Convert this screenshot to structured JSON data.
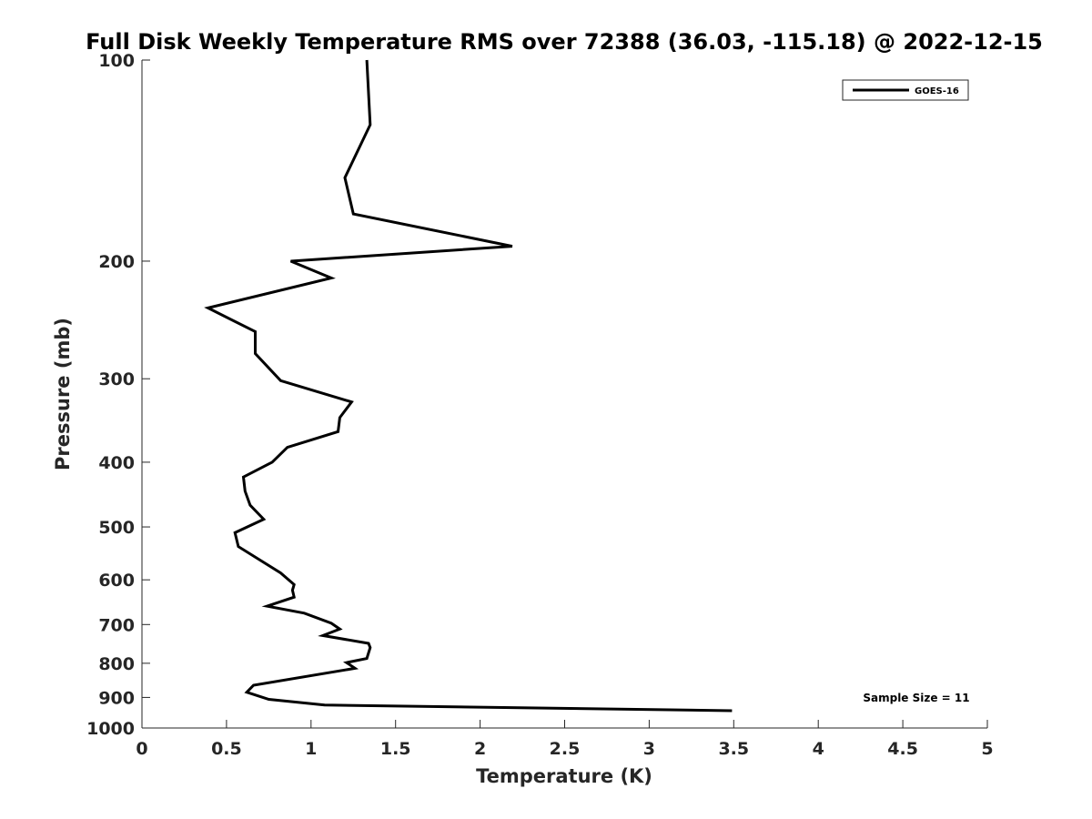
{
  "chart_data": {
    "type": "line",
    "title": "Full Disk Weekly Temperature RMS over 72388 (36.03, -115.18) @ 2022-12-15",
    "xlabel": "Temperature (K)",
    "ylabel": "Pressure (mb)",
    "xlim": [
      0,
      5
    ],
    "ylim": [
      100,
      1000
    ],
    "y_scale": "log",
    "y_reversed": true,
    "x_ticks": [
      0,
      0.5,
      1,
      1.5,
      2,
      2.5,
      3,
      3.5,
      4,
      4.5,
      5
    ],
    "x_tick_labels": [
      "0",
      "0.5",
      "1",
      "1.5",
      "2",
      "2.5",
      "3",
      "3.5",
      "4",
      "4.5",
      "5"
    ],
    "y_ticks": [
      100,
      200,
      300,
      400,
      500,
      600,
      700,
      800,
      900,
      1000
    ],
    "y_tick_labels": [
      "100",
      "200",
      "300",
      "400",
      "500",
      "600",
      "700",
      "800",
      "900",
      "1000"
    ],
    "grid": false,
    "legend_position": "top-right",
    "series": [
      {
        "name": "GOES-16",
        "color": "#000000",
        "x": [
          1.33,
          1.35,
          1.2,
          1.25,
          2.19,
          0.88,
          1.12,
          0.39,
          0.67,
          0.67,
          0.82,
          1.24,
          1.17,
          1.16,
          0.86,
          0.77,
          0.6,
          0.61,
          0.64,
          0.72,
          0.55,
          0.57,
          0.82,
          0.9,
          0.89,
          0.9,
          0.74,
          0.96,
          1.12,
          1.17,
          1.07,
          1.34,
          1.35,
          1.33,
          1.21,
          1.26,
          0.66,
          0.62,
          0.75,
          1.08,
          3.49
        ],
        "y": [
          100,
          125,
          150,
          170,
          190,
          200,
          212,
          235,
          255,
          275,
          302,
          325,
          343,
          360,
          380,
          400,
          421,
          442,
          464,
          487,
          510,
          535,
          586,
          610,
          622,
          637,
          657,
          673,
          697,
          711,
          727,
          747,
          758,
          787,
          798,
          814,
          863,
          884,
          906,
          924,
          942
        ]
      }
    ],
    "annotations": [
      "Sample Size = 11"
    ]
  }
}
